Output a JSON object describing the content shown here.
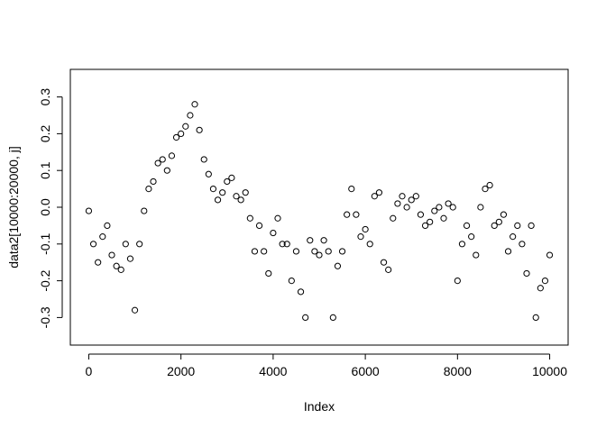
{
  "chart_data": {
    "type": "scatter",
    "title": "",
    "xlabel": "Index",
    "ylabel": "data2[10000:20000, j]",
    "xlim": [
      -400,
      10400
    ],
    "ylim": [
      -0.375,
      0.375
    ],
    "x_ticks": [
      0,
      2000,
      4000,
      6000,
      8000,
      10000
    ],
    "y_ticks": [
      -0.3,
      -0.2,
      -0.1,
      0.0,
      0.1,
      0.2,
      0.3
    ],
    "x_tick_labels": [
      "0",
      "2000",
      "4000",
      "6000",
      "8000",
      "10000"
    ],
    "y_tick_labels": [
      "-0.3",
      "-0.2",
      "-0.1",
      "0.0",
      "0.1",
      "0.2",
      "0.3"
    ],
    "marker": "open-circle",
    "grid": false,
    "legend": "none",
    "series": [
      {
        "x": [
          0,
          100,
          200,
          300,
          400,
          500,
          600,
          700,
          800,
          900,
          1000,
          1100,
          1200,
          1300,
          1400,
          1500,
          1600,
          1700,
          1800,
          1900,
          2000,
          2100,
          2200,
          2300,
          2400,
          2500,
          2600,
          2700,
          2800,
          2900,
          3000,
          3100,
          3200,
          3300,
          3400,
          3500,
          3600,
          3700,
          3800,
          3900,
          4000,
          4100,
          4200,
          4300,
          4400,
          4500,
          4600,
          4700,
          4800,
          4900,
          5000,
          5100,
          5200,
          5300,
          5400,
          5500,
          5600,
          5700,
          5800,
          5900,
          6000,
          6100,
          6200,
          6300,
          6400,
          6500,
          6600,
          6700,
          6800,
          6900,
          7000,
          7100,
          7200,
          7300,
          7400,
          7500,
          7600,
          7700,
          7800,
          7900,
          8000,
          8100,
          8200,
          8300,
          8400,
          8500,
          8600,
          8700,
          8800,
          8900,
          9000,
          9100,
          9200,
          9300,
          9400,
          9500,
          9600,
          9700,
          9800,
          9900,
          10000
        ],
        "y": [
          -0.01,
          -0.1,
          -0.15,
          -0.08,
          -0.05,
          -0.13,
          -0.16,
          -0.17,
          -0.1,
          -0.14,
          -0.28,
          -0.1,
          -0.01,
          0.05,
          0.07,
          0.12,
          0.13,
          0.1,
          0.14,
          0.19,
          0.2,
          0.22,
          0.25,
          0.28,
          0.21,
          0.13,
          0.09,
          0.05,
          0.02,
          0.04,
          0.07,
          0.08,
          0.03,
          0.02,
          0.04,
          -0.03,
          -0.12,
          -0.05,
          -0.12,
          -0.18,
          -0.07,
          -0.03,
          -0.1,
          -0.1,
          -0.2,
          -0.12,
          -0.23,
          -0.3,
          -0.09,
          -0.12,
          -0.13,
          -0.09,
          -0.12,
          -0.3,
          -0.16,
          -0.12,
          -0.02,
          0.05,
          -0.02,
          -0.08,
          -0.06,
          -0.1,
          0.03,
          0.04,
          -0.15,
          -0.17,
          -0.03,
          0.01,
          0.03,
          0.0,
          0.02,
          0.03,
          -0.02,
          -0.05,
          -0.04,
          -0.01,
          0.0,
          -0.03,
          0.01,
          0.0,
          -0.2,
          -0.1,
          -0.05,
          -0.08,
          -0.13,
          0.0,
          0.05,
          0.06,
          -0.05,
          -0.04,
          -0.02,
          -0.12,
          -0.08,
          -0.05,
          -0.1,
          -0.18,
          -0.05,
          -0.3,
          -0.22,
          -0.2,
          -0.13
        ]
      }
    ]
  }
}
